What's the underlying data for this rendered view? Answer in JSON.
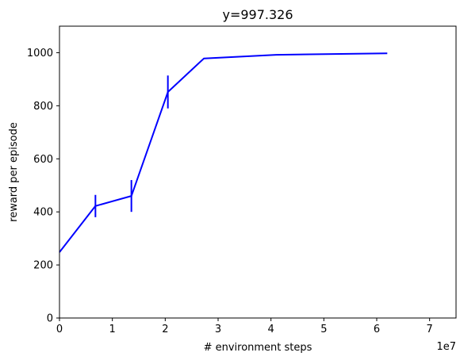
{
  "chart_data": {
    "type": "line",
    "title": "y=997.326",
    "xlabel": "# environment steps",
    "ylabel": "reward per episode",
    "x_exponent_label": "1e7",
    "xlim": [
      0,
      7.5
    ],
    "ylim": [
      0,
      1100
    ],
    "x_ticks": [
      0,
      1,
      2,
      3,
      4,
      5,
      6,
      7
    ],
    "x_tick_labels": [
      "0",
      "1",
      "2",
      "3",
      "4",
      "5",
      "6",
      "7"
    ],
    "y_ticks": [
      0,
      200,
      400,
      600,
      800,
      1000
    ],
    "y_tick_labels": [
      "0",
      "200",
      "400",
      "600",
      "800",
      "1000"
    ],
    "grid": false,
    "series": [
      {
        "color": "#0000ff",
        "x": [
          0.0,
          0.68,
          1.36,
          2.05,
          2.73,
          4.1,
          6.2
        ],
        "y": [
          248,
          422,
          460,
          852,
          978,
          992,
          997.326
        ],
        "yerr": [
          0,
          42,
          60,
          62,
          0,
          0,
          0
        ]
      }
    ]
  }
}
